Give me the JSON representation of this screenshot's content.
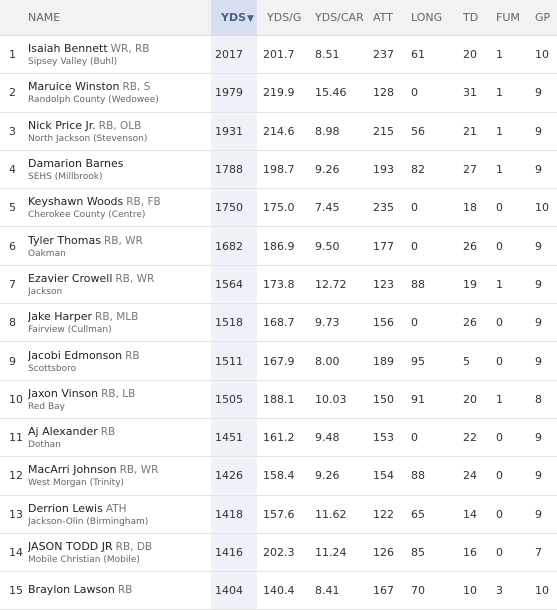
{
  "columns": {
    "name": "NAME",
    "yds": "YDS",
    "sort_arrow": "▼",
    "yds_g": "YDS/G",
    "yds_car": "YDS/CAR",
    "att": "ATT",
    "long": "LONG",
    "td": "TD",
    "fum": "FUM",
    "gp": "GP"
  },
  "rows": [
    {
      "rank": "1",
      "name": "Isaiah Bennett",
      "pos": "WR, RB",
      "school": "Sipsey Valley (Buhl)",
      "yds": "2017",
      "yds_g": "201.7",
      "yds_car": "8.51",
      "att": "237",
      "long": "61",
      "td": "20",
      "fum": "1",
      "gp": "10"
    },
    {
      "rank": "2",
      "name": "Maruice Winston",
      "pos": "RB, S",
      "school": "Randolph County (Wedowee)",
      "yds": "1979",
      "yds_g": "219.9",
      "yds_car": "15.46",
      "att": "128",
      "long": "0",
      "td": "31",
      "fum": "1",
      "gp": "9"
    },
    {
      "rank": "3",
      "name": "Nick Price Jr.",
      "pos": "RB, OLB",
      "school": "North Jackson (Stevenson)",
      "yds": "1931",
      "yds_g": "214.6",
      "yds_car": "8.98",
      "att": "215",
      "long": "56",
      "td": "21",
      "fum": "1",
      "gp": "9"
    },
    {
      "rank": "4",
      "name": "Damarion Barnes",
      "pos": "",
      "school": "SEHS (Millbrook)",
      "yds": "1788",
      "yds_g": "198.7",
      "yds_car": "9.26",
      "att": "193",
      "long": "82",
      "td": "27",
      "fum": "1",
      "gp": "9"
    },
    {
      "rank": "5",
      "name": "Keyshawn Woods",
      "pos": "RB, FB",
      "school": "Cherokee County (Centre)",
      "yds": "1750",
      "yds_g": "175.0",
      "yds_car": "7.45",
      "att": "235",
      "long": "0",
      "td": "18",
      "fum": "0",
      "gp": "10"
    },
    {
      "rank": "6",
      "name": "Tyler Thomas",
      "pos": "RB, WR",
      "school": "Oakman",
      "yds": "1682",
      "yds_g": "186.9",
      "yds_car": "9.50",
      "att": "177",
      "long": "0",
      "td": "26",
      "fum": "0",
      "gp": "9"
    },
    {
      "rank": "7",
      "name": "Ezavier Crowell",
      "pos": "RB, WR",
      "school": "Jackson",
      "yds": "1564",
      "yds_g": "173.8",
      "yds_car": "12.72",
      "att": "123",
      "long": "88",
      "td": "19",
      "fum": "1",
      "gp": "9"
    },
    {
      "rank": "8",
      "name": "Jake Harper",
      "pos": "RB, MLB",
      "school": "Fairview (Cullman)",
      "yds": "1518",
      "yds_g": "168.7",
      "yds_car": "9.73",
      "att": "156",
      "long": "0",
      "td": "26",
      "fum": "0",
      "gp": "9"
    },
    {
      "rank": "9",
      "name": "Jacobi Edmonson",
      "pos": "RB",
      "school": "Scottsboro",
      "yds": "1511",
      "yds_g": "167.9",
      "yds_car": "8.00",
      "att": "189",
      "long": "95",
      "td": "5",
      "fum": "0",
      "gp": "9"
    },
    {
      "rank": "10",
      "name": "Jaxon Vinson",
      "pos": "RB, LB",
      "school": "Red Bay",
      "yds": "1505",
      "yds_g": "188.1",
      "yds_car": "10.03",
      "att": "150",
      "long": "91",
      "td": "20",
      "fum": "1",
      "gp": "8"
    },
    {
      "rank": "11",
      "name": "Aj Alexander",
      "pos": "RB",
      "school": "Dothan",
      "yds": "1451",
      "yds_g": "161.2",
      "yds_car": "9.48",
      "att": "153",
      "long": "0",
      "td": "22",
      "fum": "0",
      "gp": "9"
    },
    {
      "rank": "12",
      "name": "MacArri Johnson",
      "pos": "RB, WR",
      "school": "West Morgan (Trinity)",
      "yds": "1426",
      "yds_g": "158.4",
      "yds_car": "9.26",
      "att": "154",
      "long": "88",
      "td": "24",
      "fum": "0",
      "gp": "9"
    },
    {
      "rank": "13",
      "name": "Derrion Lewis",
      "pos": "ATH",
      "school": "Jackson-Olin (Birmingham)",
      "yds": "1418",
      "yds_g": "157.6",
      "yds_car": "11.62",
      "att": "122",
      "long": "65",
      "td": "14",
      "fum": "0",
      "gp": "9"
    },
    {
      "rank": "14",
      "name": "JASON TODD JR",
      "pos": "RB, DB",
      "school": "Mobile Christian (Mobile)",
      "yds": "1416",
      "yds_g": "202.3",
      "yds_car": "11.24",
      "att": "126",
      "long": "85",
      "td": "16",
      "fum": "0",
      "gp": "7"
    },
    {
      "rank": "15",
      "name": "Braylon Lawson",
      "pos": "RB",
      "school": "",
      "yds": "1404",
      "yds_g": "140.4",
      "yds_car": "8.41",
      "att": "167",
      "long": "70",
      "td": "10",
      "fum": "3",
      "gp": "10"
    }
  ]
}
